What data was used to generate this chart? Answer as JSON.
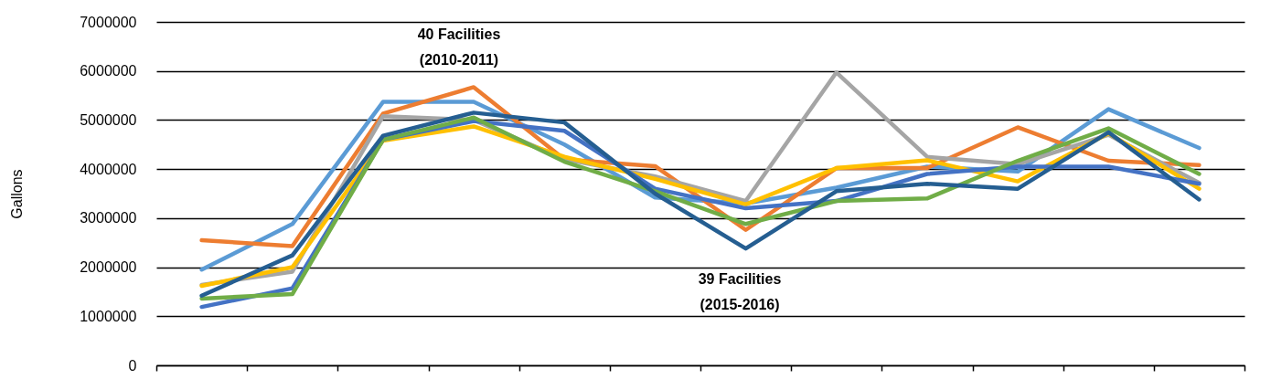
{
  "chart_data": {
    "type": "line",
    "ylabel": "Gallons",
    "categories": [
      null,
      null,
      null,
      null,
      null,
      null,
      null,
      null,
      null,
      null,
      null,
      null
    ],
    "series": [
      {
        "color": "#5b9bd5",
        "values": [
          1950000,
          2880000,
          5370000,
          5370000,
          4500000,
          3420000,
          3300000,
          3620000,
          4050000,
          3950000,
          5220000,
          4430000
        ]
      },
      {
        "color": "#ed7d31",
        "values": [
          2550000,
          2430000,
          5130000,
          5670000,
          4200000,
          4060000,
          2760000,
          4020000,
          4020000,
          4850000,
          4170000,
          4080000
        ]
      },
      {
        "color": "#a5a5a5",
        "values": [
          1640000,
          1910000,
          5080000,
          5000000,
          4200000,
          3850000,
          3350000,
          5970000,
          4250000,
          4100000,
          4700000,
          3720000
        ]
      },
      {
        "color": "#ffc000",
        "values": [
          1620000,
          2000000,
          4580000,
          4870000,
          4250000,
          3800000,
          3280000,
          4020000,
          4180000,
          3750000,
          4730000,
          3600000
        ]
      },
      {
        "color": "#4472c4",
        "values": [
          1190000,
          1570000,
          4600000,
          4980000,
          4780000,
          3600000,
          3200000,
          3350000,
          3900000,
          4050000,
          4050000,
          3700000
        ]
      },
      {
        "color": "#70ad47",
        "values": [
          1360000,
          1450000,
          4600000,
          5050000,
          4150000,
          3550000,
          2880000,
          3350000,
          3400000,
          4170000,
          4830000,
          3900000
        ]
      },
      {
        "color": "#255e91",
        "values": [
          1420000,
          2240000,
          4680000,
          5150000,
          4950000,
          3500000,
          2380000,
          3550000,
          3700000,
          3600000,
          4750000,
          3380000
        ]
      }
    ],
    "ylim": [
      0,
      7000000
    ],
    "yticks": [
      0,
      1000000,
      2000000,
      3000000,
      4000000,
      5000000,
      6000000,
      7000000
    ],
    "grid": "y",
    "legend": false,
    "tick_labels": "y",
    "line_style": "solid",
    "marker": "none",
    "annotations": [
      "40 Facilities\n(2010-2011)",
      "39 Facilities\n(2015-2016)"
    ]
  }
}
